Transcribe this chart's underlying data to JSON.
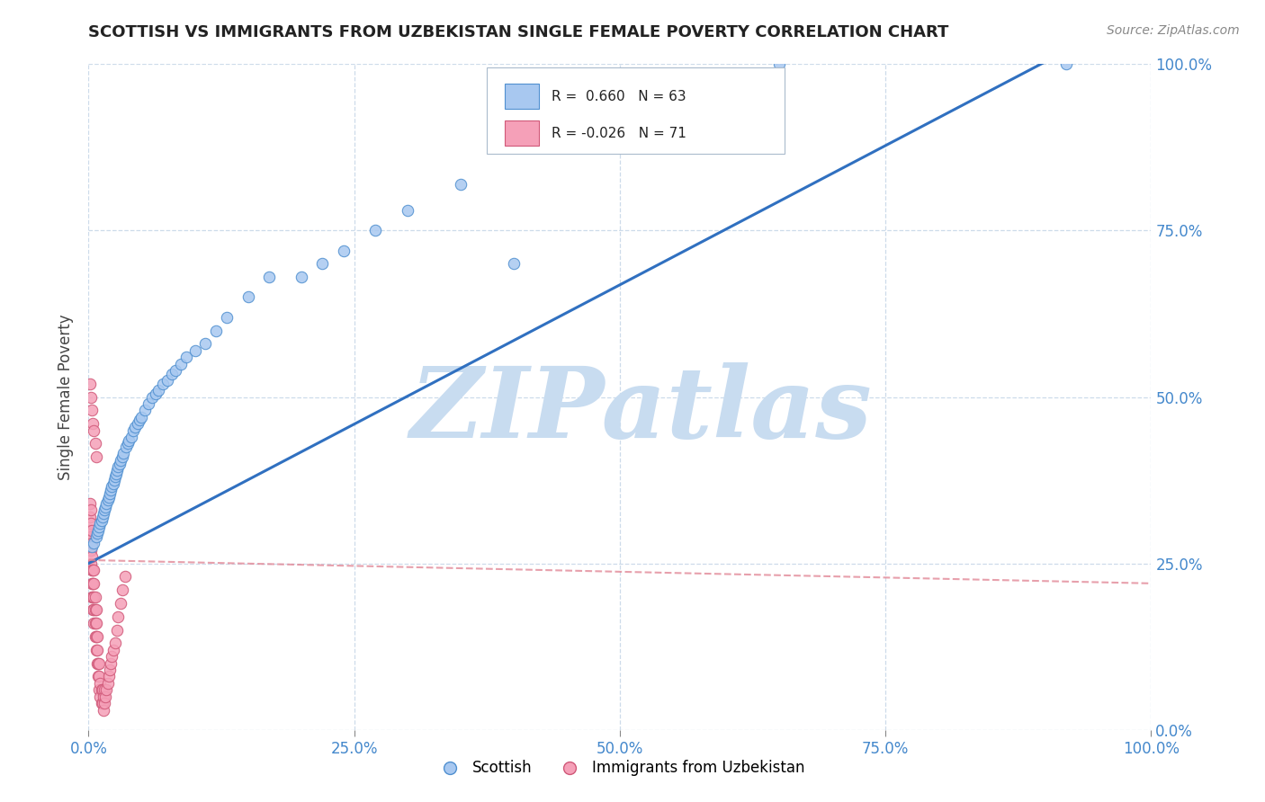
{
  "title": "SCOTTISH VS IMMIGRANTS FROM UZBEKISTAN SINGLE FEMALE POVERTY CORRELATION CHART",
  "source": "Source: ZipAtlas.com",
  "ylabel": "Single Female Poverty",
  "xlim": [
    0,
    1
  ],
  "ylim": [
    0,
    1
  ],
  "xticks": [
    0.0,
    0.25,
    0.5,
    0.75,
    1.0
  ],
  "yticks": [
    0.0,
    0.25,
    0.5,
    0.75,
    1.0
  ],
  "xtick_labels": [
    "0.0%",
    "25.0%",
    "50.0%",
    "75.0%",
    "100.0%"
  ],
  "ytick_labels": [
    "0.0%",
    "25.0%",
    "50.0%",
    "75.0%",
    "100.0%"
  ],
  "scottish_color": "#A8C8F0",
  "scottish_edge": "#5090D0",
  "uzbekistan_color": "#F5A0B8",
  "uzbekistan_edge": "#D05878",
  "trend_blue": "#3070C0",
  "trend_pink": "#E08090",
  "R_scottish": 0.66,
  "N_scottish": 63,
  "R_uzbekistan": -0.026,
  "N_uzbekistan": 71,
  "watermark": "ZIPatlas",
  "watermark_color": "#C8DCF0",
  "legend_label1": "Scottish",
  "legend_label2": "Immigrants from Uzbekistan",
  "scottish_x": [
    0.003,
    0.005,
    0.007,
    0.008,
    0.009,
    0.01,
    0.011,
    0.012,
    0.013,
    0.014,
    0.015,
    0.016,
    0.017,
    0.018,
    0.019,
    0.02,
    0.021,
    0.022,
    0.023,
    0.024,
    0.025,
    0.026,
    0.027,
    0.028,
    0.029,
    0.03,
    0.032,
    0.033,
    0.035,
    0.037,
    0.038,
    0.04,
    0.042,
    0.044,
    0.046,
    0.048,
    0.05,
    0.053,
    0.056,
    0.06,
    0.063,
    0.066,
    0.07,
    0.074,
    0.078,
    0.082,
    0.087,
    0.092,
    0.1,
    0.11,
    0.12,
    0.13,
    0.15,
    0.17,
    0.2,
    0.22,
    0.24,
    0.27,
    0.3,
    0.35,
    0.4,
    0.92,
    0.65
  ],
  "scottish_y": [
    0.275,
    0.28,
    0.29,
    0.295,
    0.3,
    0.305,
    0.31,
    0.315,
    0.32,
    0.325,
    0.33,
    0.335,
    0.34,
    0.345,
    0.35,
    0.355,
    0.36,
    0.365,
    0.37,
    0.375,
    0.38,
    0.385,
    0.39,
    0.395,
    0.4,
    0.405,
    0.41,
    0.415,
    0.425,
    0.43,
    0.435,
    0.44,
    0.45,
    0.455,
    0.46,
    0.465,
    0.47,
    0.48,
    0.49,
    0.5,
    0.505,
    0.51,
    0.52,
    0.525,
    0.535,
    0.54,
    0.55,
    0.56,
    0.57,
    0.58,
    0.6,
    0.62,
    0.65,
    0.68,
    0.68,
    0.7,
    0.72,
    0.75,
    0.78,
    0.82,
    0.7,
    1.0,
    1.0
  ],
  "uzbekistan_x": [
    0.001,
    0.001,
    0.001,
    0.001,
    0.002,
    0.002,
    0.002,
    0.002,
    0.002,
    0.003,
    0.003,
    0.003,
    0.003,
    0.003,
    0.003,
    0.004,
    0.004,
    0.004,
    0.004,
    0.005,
    0.005,
    0.005,
    0.005,
    0.005,
    0.006,
    0.006,
    0.006,
    0.006,
    0.007,
    0.007,
    0.007,
    0.007,
    0.008,
    0.008,
    0.008,
    0.009,
    0.009,
    0.01,
    0.01,
    0.01,
    0.011,
    0.011,
    0.012,
    0.012,
    0.013,
    0.013,
    0.014,
    0.014,
    0.015,
    0.015,
    0.016,
    0.017,
    0.018,
    0.019,
    0.02,
    0.021,
    0.022,
    0.023,
    0.025,
    0.027,
    0.028,
    0.03,
    0.032,
    0.034,
    0.001,
    0.002,
    0.003,
    0.004,
    0.005,
    0.006,
    0.007
  ],
  "uzbekistan_y": [
    0.28,
    0.3,
    0.32,
    0.34,
    0.25,
    0.27,
    0.29,
    0.31,
    0.33,
    0.2,
    0.22,
    0.24,
    0.26,
    0.28,
    0.3,
    0.18,
    0.2,
    0.22,
    0.24,
    0.16,
    0.18,
    0.2,
    0.22,
    0.24,
    0.14,
    0.16,
    0.18,
    0.2,
    0.12,
    0.14,
    0.16,
    0.18,
    0.1,
    0.12,
    0.14,
    0.08,
    0.1,
    0.06,
    0.08,
    0.1,
    0.05,
    0.07,
    0.04,
    0.06,
    0.04,
    0.06,
    0.03,
    0.05,
    0.04,
    0.06,
    0.05,
    0.06,
    0.07,
    0.08,
    0.09,
    0.1,
    0.11,
    0.12,
    0.13,
    0.15,
    0.17,
    0.19,
    0.21,
    0.23,
    0.52,
    0.5,
    0.48,
    0.46,
    0.45,
    0.43,
    0.41
  ],
  "trend_blue_x0": 0.0,
  "trend_blue_y0": 0.25,
  "trend_blue_x1": 0.92,
  "trend_blue_y1": 1.02,
  "trend_pink_x0": 0.0,
  "trend_pink_y0": 0.255,
  "trend_pink_x1": 1.0,
  "trend_pink_y1": 0.22
}
